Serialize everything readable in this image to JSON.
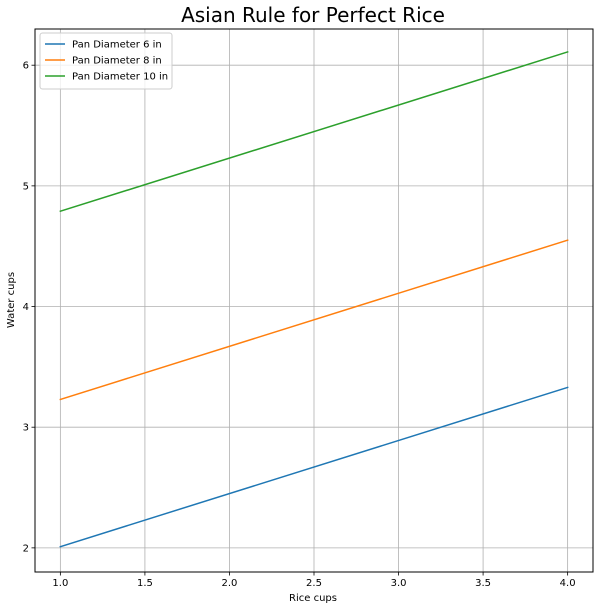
{
  "chart_data": {
    "type": "line",
    "title": "Asian Rule for Perfect Rice",
    "xlabel": "Rice cups",
    "ylabel": "Water cups",
    "xlim": [
      0.85,
      4.15
    ],
    "ylim": [
      1.8,
      6.3
    ],
    "xticks": [
      1.0,
      1.5,
      2.0,
      2.5,
      3.0,
      3.5,
      4.0
    ],
    "xtick_labels": [
      "1.0",
      "1.5",
      "2.0",
      "2.5",
      "3.0",
      "3.5",
      "4.0"
    ],
    "yticks": [
      2,
      3,
      4,
      5,
      6
    ],
    "ytick_labels": [
      "2",
      "3",
      "4",
      "5",
      "6"
    ],
    "grid": true,
    "legend_position": "top-left",
    "x": [
      1.0,
      4.0
    ],
    "series": [
      {
        "name": "Pan Diameter 6 in",
        "color": "#1f77b4",
        "values": [
          2.01,
          3.33
        ]
      },
      {
        "name": "Pan Diameter 8 in",
        "color": "#ff7f0e",
        "values": [
          3.23,
          4.55
        ]
      },
      {
        "name": "Pan Diameter 10 in",
        "color": "#2ca02c",
        "values": [
          4.79,
          6.11
        ]
      }
    ]
  }
}
